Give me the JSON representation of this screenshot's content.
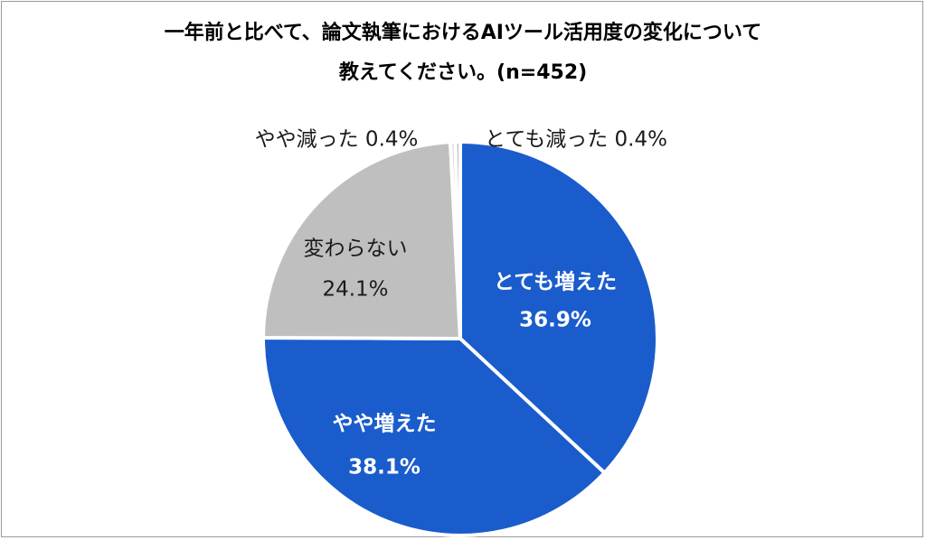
{
  "chart_data": {
    "type": "pie",
    "title_line1": "一年前と比べて、論文執筆におけるAIツール活用度の変化について",
    "title_line2": "教えてください。(n=452)",
    "slices": [
      {
        "name": "とても増えた",
        "value": 36.9,
        "value_label": "36.9%",
        "color": "#1a5ccc",
        "label_color": "#ffffff",
        "bold": true
      },
      {
        "name": "やや増えた",
        "value": 38.1,
        "value_label": "38.1%",
        "color": "#1a5ccc",
        "label_color": "#ffffff",
        "bold": true
      },
      {
        "name": "変わらない",
        "value": 24.1,
        "value_label": "24.1%",
        "color": "#bfbfbf",
        "label_color": "#1a1a1a",
        "bold": false
      },
      {
        "name": "やや減った",
        "value": 0.4,
        "value_label": "0.4%",
        "color": "#d9d9d9",
        "label_color": "#1a1a1a",
        "bold": false
      },
      {
        "name": "とても減った",
        "value": 0.4,
        "value_label": "0.4%",
        "color": "#bfbfbf",
        "label_color": "#1a1a1a",
        "bold": false
      }
    ],
    "start_position": "top",
    "direction": "clockwise",
    "slice_border_color": "#ffffff"
  }
}
